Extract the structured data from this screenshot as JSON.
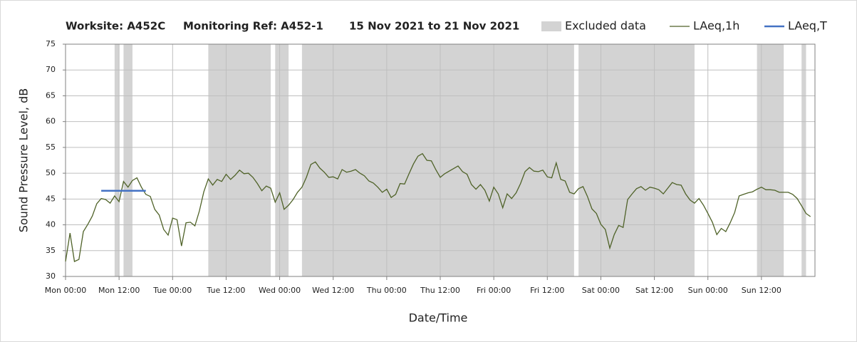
{
  "chart_data": {
    "type": "line",
    "title": [
      "Worksite: A452C",
      "Monitoring Ref: A452-1",
      "15 Nov 2021 to 21 Nov 2021"
    ],
    "x_label": "Date/Time",
    "y_label": "Sound Pressure Level, dB",
    "xlim": [
      0,
      168
    ],
    "xticks": [
      {
        "value": 0,
        "label": "Mon 00:00"
      },
      {
        "value": 12,
        "label": "Mon 12:00"
      },
      {
        "value": 24,
        "label": "Tue 00:00"
      },
      {
        "value": 36,
        "label": "Tue 12:00"
      },
      {
        "value": 48,
        "label": "Wed 00:00"
      },
      {
        "value": 60,
        "label": "Wed 12:00"
      },
      {
        "value": 72,
        "label": "Thu 00:00"
      },
      {
        "value": 84,
        "label": "Thu 12:00"
      },
      {
        "value": 96,
        "label": "Fri 00:00"
      },
      {
        "value": 108,
        "label": "Fri 12:00"
      },
      {
        "value": 120,
        "label": "Sat 00:00"
      },
      {
        "value": 132,
        "label": "Sat 12:00"
      },
      {
        "value": 144,
        "label": "Sun 00:00"
      },
      {
        "value": 156,
        "label": "Sun 12:00"
      }
    ],
    "ylim": [
      30,
      75
    ],
    "yticks": [
      30,
      35,
      40,
      45,
      50,
      55,
      60,
      65,
      70,
      75
    ],
    "grid": true,
    "legend": "top-right",
    "series": [
      {
        "name": "Excluded data",
        "type": "span",
        "color": "#d3d3d3",
        "ranges": [
          [
            11,
            12
          ],
          [
            13,
            15
          ],
          [
            32,
            46
          ],
          [
            47,
            50
          ],
          [
            53,
            114
          ],
          [
            115,
            141
          ],
          [
            155,
            161
          ],
          [
            165,
            166
          ]
        ]
      },
      {
        "name": "LAeq,1h",
        "type": "line",
        "color": "#4f6228",
        "x": [
          0,
          1,
          2,
          3,
          4,
          5,
          6,
          7,
          8,
          9,
          10,
          11,
          12,
          13,
          14,
          15,
          16,
          17,
          18,
          19,
          20,
          21,
          22,
          23,
          24,
          25,
          26,
          27,
          28,
          29,
          30,
          31,
          32,
          33,
          34,
          35,
          36,
          37,
          38,
          39,
          40,
          41,
          42,
          43,
          44,
          45,
          46,
          47,
          48,
          49,
          50,
          51,
          52,
          53,
          54,
          55,
          56,
          57,
          58,
          59,
          60,
          61,
          62,
          63,
          64,
          65,
          66,
          67,
          68,
          69,
          70,
          71,
          72,
          73,
          74,
          75,
          76,
          77,
          78,
          79,
          80,
          81,
          82,
          83,
          84,
          85,
          86,
          87,
          88,
          89,
          90,
          91,
          92,
          93,
          94,
          95,
          96,
          97,
          98,
          99,
          100,
          101,
          102,
          103,
          104,
          105,
          106,
          107,
          108,
          109,
          110,
          111,
          112,
          113,
          114,
          115,
          116,
          117,
          118,
          119,
          120,
          121,
          122,
          123,
          124,
          125,
          126,
          127,
          128,
          129,
          130,
          131,
          132,
          133,
          134,
          135,
          136,
          137,
          138,
          139,
          140,
          141,
          142,
          143,
          144,
          145,
          146,
          147,
          148,
          149,
          150,
          151,
          152,
          153,
          154,
          155,
          156,
          157,
          158,
          159,
          160,
          161,
          162,
          163,
          164,
          165,
          166,
          167
        ],
        "values": [
          32.9,
          38.4,
          32.9,
          33.3,
          38.7,
          40.1,
          41.7,
          44.1,
          45.1,
          44.9,
          44.2,
          45.6,
          44.5,
          48.4,
          47.3,
          48.6,
          49.1,
          47.3,
          45.9,
          45.5,
          43.0,
          41.9,
          39.1,
          38.0,
          41.3,
          41.0,
          35.9,
          40.4,
          40.5,
          39.8,
          42.7,
          46.4,
          48.9,
          47.7,
          48.8,
          48.4,
          49.8,
          48.8,
          49.6,
          50.6,
          49.9,
          50.0,
          49.2,
          48.0,
          46.6,
          47.5,
          47.1,
          44.4,
          46.2,
          43.0,
          43.8,
          44.9,
          46.3,
          47.3,
          49.2,
          51.7,
          52.2,
          51.0,
          50.2,
          49.2,
          49.3,
          48.9,
          50.7,
          50.2,
          50.4,
          50.7,
          50.0,
          49.5,
          48.5,
          48.1,
          47.3,
          46.3,
          46.9,
          45.3,
          45.9,
          48.0,
          47.9,
          49.9,
          51.8,
          53.3,
          53.8,
          52.5,
          52.4,
          50.7,
          49.2,
          49.9,
          50.4,
          50.9,
          51.4,
          50.3,
          49.8,
          47.8,
          46.9,
          47.8,
          46.7,
          44.6,
          47.3,
          46.0,
          43.3,
          46.0,
          45.1,
          46.2,
          48.0,
          50.3,
          51.1,
          50.4,
          50.3,
          50.6,
          49.3,
          49.1,
          52.0,
          48.8,
          48.5,
          46.3,
          46.0,
          47.0,
          47.4,
          45.5,
          43.1,
          42.2,
          40.1,
          39.1,
          35.5,
          38.1,
          39.9,
          39.5,
          44.9,
          46.0,
          47.0,
          47.4,
          46.7,
          47.3,
          47.1,
          46.8,
          46.0,
          47.1,
          48.2,
          47.8,
          47.7,
          46.0,
          44.8,
          44.2,
          45.1,
          43.8,
          42.2,
          40.5,
          38.1,
          39.3,
          38.7,
          40.4,
          42.4,
          45.6,
          45.9,
          46.2,
          46.4,
          46.9,
          47.3,
          46.8,
          46.8,
          46.7,
          46.3,
          46.3,
          46.3,
          45.9,
          45.1,
          43.7,
          42.2,
          41.6
        ]
      },
      {
        "name": "LAeq,T",
        "type": "line",
        "color": "#4472c4",
        "x": [
          8,
          18
        ],
        "values": [
          46.6,
          46.6
        ]
      }
    ]
  }
}
